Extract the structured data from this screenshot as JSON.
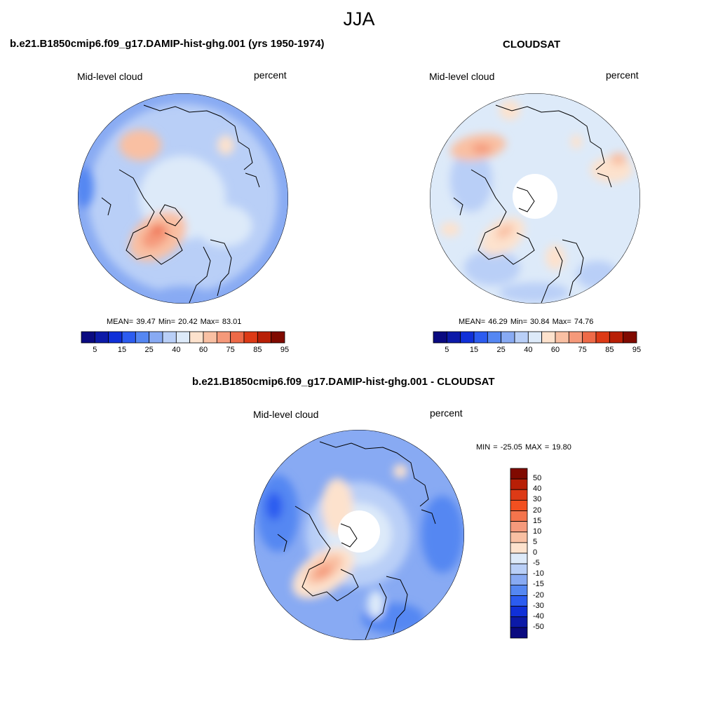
{
  "figure": {
    "season": "JJA",
    "field_label": "Mid-level cloud",
    "units": "percent"
  },
  "panels": {
    "model": {
      "title": "b.e21.B1850cmip6.f09_g17.DAMIP-hist-ghg.001 (yrs 1950-1974)",
      "stats": "MEAN=  39.47  Min=  20.42  Max=  83.01"
    },
    "obs": {
      "title": "CLOUDSAT",
      "stats": "MEAN=  46.29  Min=  30.84  Max=  74.76"
    },
    "diff": {
      "title": "b.e21.B1850cmip6.f09_g17.DAMIP-hist-ghg.001 - CLOUDSAT",
      "stats": "MIN = -25.05 MAX =  19.80"
    }
  },
  "colorbar_abs": {
    "tick_labels": [
      "5",
      "15",
      "25",
      "40",
      "60",
      "75",
      "85",
      "95"
    ],
    "colors": [
      "#0a0a80",
      "#0c1aa8",
      "#1030d8",
      "#2c5cf0",
      "#5587f2",
      "#88aaf3",
      "#b9cff7",
      "#ddeaf9",
      "#fde2cd",
      "#f9c0a3",
      "#f5997a",
      "#ee6a48",
      "#dd3a16",
      "#b81f06",
      "#800a00"
    ]
  },
  "colorbar_diff": {
    "tick_labels": [
      "50",
      "40",
      "30",
      "20",
      "15",
      "10",
      "5",
      "0",
      "-5",
      "-10",
      "-15",
      "-20",
      "-30",
      "-40",
      "-50"
    ],
    "colors": [
      "#800a00",
      "#b81f06",
      "#dd3a16",
      "#f25020",
      "#f4744c",
      "#f59a7c",
      "#f9c0a3",
      "#fde2cd",
      "#ddeaf9",
      "#b9cff7",
      "#88aaf3",
      "#5587f2",
      "#2c5cf0",
      "#1030d8",
      "#0c1aa8",
      "#0a0a80"
    ]
  }
}
